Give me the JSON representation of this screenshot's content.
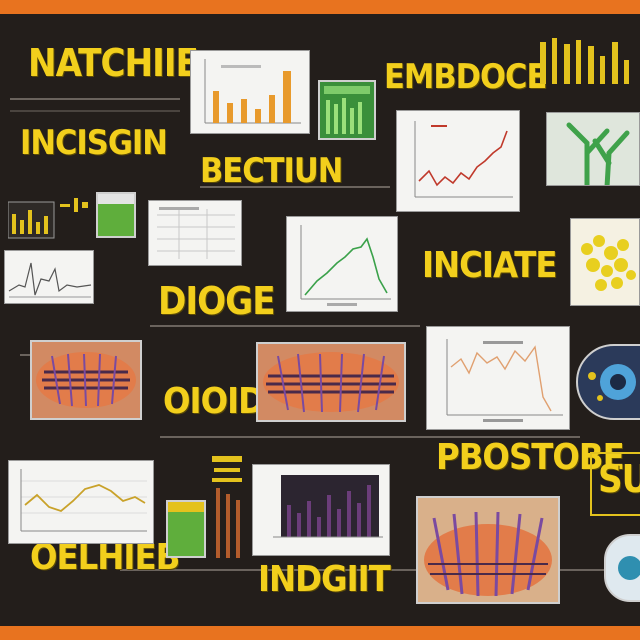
{
  "labels": {
    "l1": "NATCHIIE",
    "l2": "EMBDOCE",
    "l3": "INCISGIN",
    "l4": "BECTIUN",
    "l5": "DIOGE",
    "l6": "OIOID",
    "l7": "INCIATE",
    "l8": "PBOSTOBE",
    "l9": "OELHIEB",
    "l10": "INDGIIT",
    "l11": "SU"
  },
  "colors": {
    "board": "#231e1b",
    "frame": "#e8731f",
    "label": "#f2cf1c",
    "plot_line_red": "#c0392b",
    "plot_line_green": "#3aa14a",
    "bar_orange": "#e89a2c",
    "bar_purple": "#6b3d7a"
  }
}
